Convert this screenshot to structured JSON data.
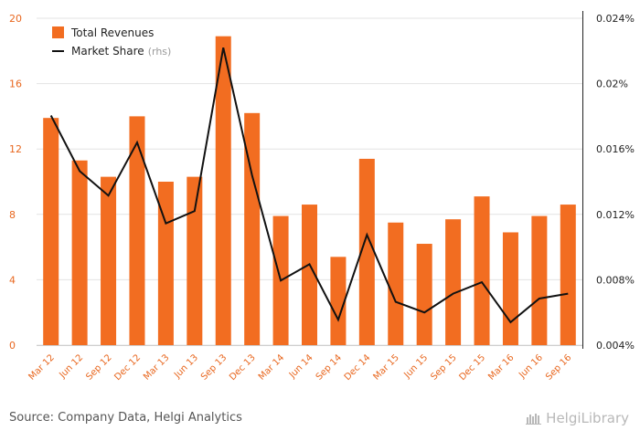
{
  "chart_data": {
    "type": "bar",
    "title": "",
    "categories": [
      "Mar 12",
      "Jun 12",
      "Sep 12",
      "Dec 12",
      "Mar 13",
      "Jun 13",
      "Sep 13",
      "Dec 13",
      "Mar 14",
      "Jun 14",
      "Sep 14",
      "Dec 14",
      "Mar 15",
      "Jun 15",
      "Sep 15",
      "Dec 15",
      "Mar 16",
      "Jun 16",
      "Sep 16"
    ],
    "series": [
      {
        "name": "Total Revenues",
        "type": "bar",
        "axis": "left",
        "color": "#f26d21",
        "values": [
          13.9,
          11.3,
          10.3,
          14.0,
          10.0,
          10.3,
          18.9,
          14.2,
          7.9,
          8.6,
          5.4,
          11.4,
          7.5,
          6.2,
          7.7,
          9.1,
          6.9,
          7.9,
          8.6
        ]
      },
      {
        "name": "Market Share",
        "name_suffix": "(rhs)",
        "type": "line",
        "axis": "right",
        "color": "#111111",
        "values": [
          0.01805,
          0.01465,
          0.01315,
          0.0164,
          0.01145,
          0.0122,
          0.0222,
          0.0144,
          0.00795,
          0.00895,
          0.00555,
          0.01075,
          0.00665,
          0.006,
          0.00715,
          0.00785,
          0.0054,
          0.00685,
          0.00715
        ]
      }
    ],
    "y_left": {
      "ylim": [
        0,
        20
      ],
      "ticks": [
        "0",
        "4",
        "8",
        "12",
        "16",
        "20"
      ]
    },
    "y_right": {
      "ylim": [
        0.004,
        0.024
      ],
      "ticks": [
        "0.004%",
        "0.008%",
        "0.012%",
        "0.016%",
        "0.02%",
        "0.024%"
      ]
    },
    "xlabel": "",
    "ylabel": "",
    "grid": true,
    "legend_position": "top-left"
  },
  "footer": {
    "source": "Source: Company Data, Helgi Analytics",
    "logo_text": "HelgiLibrary"
  }
}
